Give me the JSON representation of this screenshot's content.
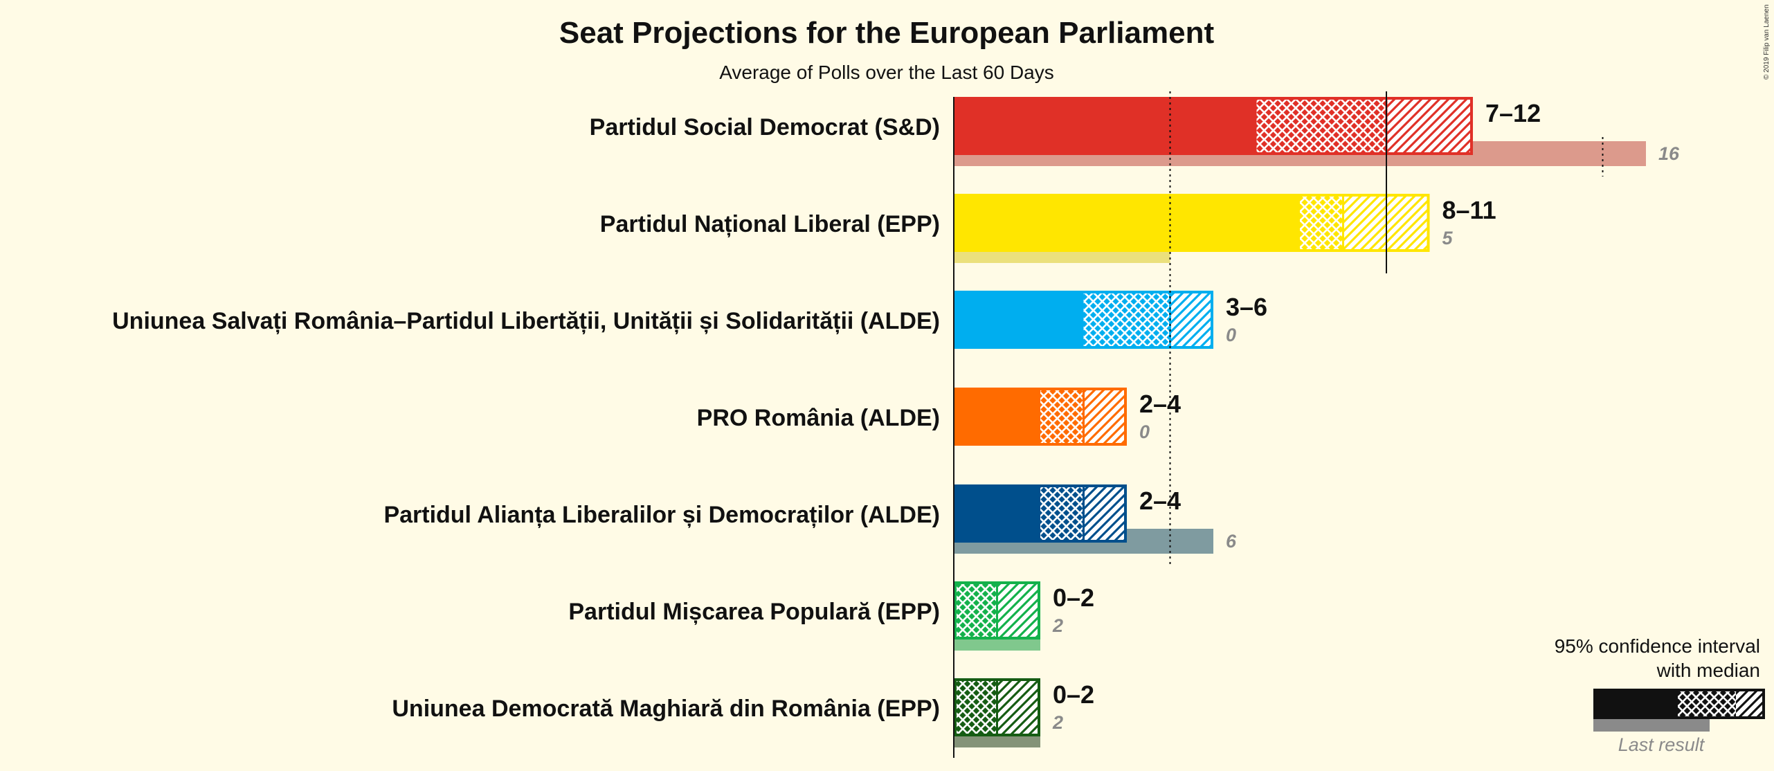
{
  "chart_data": {
    "type": "bar",
    "title": "Seat Projections for the European Parliament",
    "subtitle": "Average of Polls over the Last 60 Days",
    "copyright": "© 2019 Filip van Laenen",
    "xlim": [
      0,
      16
    ],
    "reference_lines": [
      5,
      10,
      15
    ],
    "series": [
      {
        "name": "Partidul Social Democrat (S&D)",
        "range_label": "7–12",
        "ci_low": 7,
        "median": 10,
        "ci_high": 12,
        "last_result": 16,
        "last_label": "16",
        "color": "#e03027",
        "last_color": "#dc9a8c"
      },
      {
        "name": "Partidul Național Liberal (EPP)",
        "range_label": "8–11",
        "ci_low": 8,
        "median": 9,
        "ci_high": 11,
        "last_result": 5,
        "last_label": "5",
        "color": "#ffe600",
        "last_color": "#ebe07c"
      },
      {
        "name": "Uniunea Salvați România–Partidul Libertății, Unității și Solidarității (ALDE)",
        "range_label": "3–6",
        "ci_low": 3,
        "median": 5,
        "ci_high": 6,
        "last_result": 0,
        "last_label": "0",
        "color": "#00aeef",
        "last_color": "#7fcfee"
      },
      {
        "name": "PRO România (ALDE)",
        "range_label": "2–4",
        "ci_low": 2,
        "median": 3,
        "ci_high": 4,
        "last_result": 0,
        "last_label": "0",
        "color": "#ff6b00",
        "last_color": "#f5b27f"
      },
      {
        "name": "Partidul Alianța Liberalilor și Democraților (ALDE)",
        "range_label": "2–4",
        "ci_low": 2,
        "median": 3,
        "ci_high": 4,
        "last_result": 6,
        "last_label": "6",
        "color": "#004f8c",
        "last_color": "#7f9ba0"
      },
      {
        "name": "Partidul Mișcarea Populară (EPP)",
        "range_label": "0–2",
        "ci_low": 0,
        "median": 1,
        "ci_high": 2,
        "last_result": 2,
        "last_label": "2",
        "color": "#13b14b",
        "last_color": "#80c88d"
      },
      {
        "name": "Uniunea Democrată Maghiară din România (EPP)",
        "range_label": "0–2",
        "ci_low": 0,
        "median": 1,
        "ci_high": 2,
        "last_result": 2,
        "last_label": "2",
        "color": "#155c13",
        "last_color": "#849378"
      }
    ],
    "legend": {
      "line1": "95% confidence interval",
      "line2": "with median",
      "last": "Last result",
      "color": "#111111",
      "last_color": "#8a8a8a",
      "example": {
        "ci_low": 2,
        "median": 4,
        "ci_high": 5,
        "last_result": 2.6
      }
    }
  }
}
